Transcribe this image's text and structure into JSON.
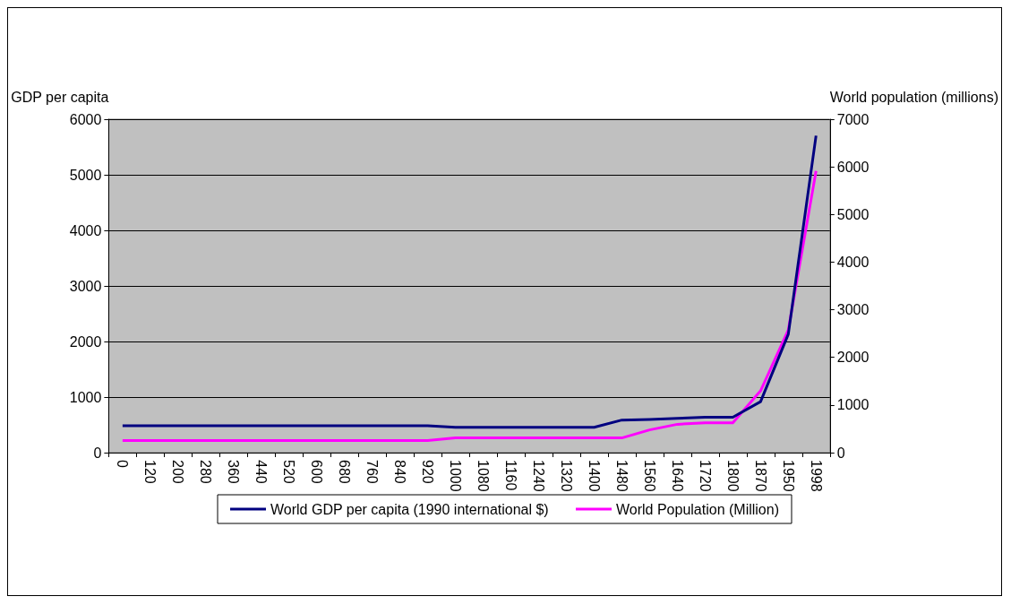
{
  "chart_data": {
    "type": "line",
    "categories": [
      "0",
      "120",
      "200",
      "280",
      "360",
      "440",
      "520",
      "600",
      "680",
      "760",
      "840",
      "920",
      "1000",
      "1080",
      "1160",
      "1240",
      "1320",
      "1400",
      "1480",
      "1560",
      "1640",
      "1720",
      "1800",
      "1870",
      "1950",
      "1998"
    ],
    "series": [
      {
        "name": "World GDP per capita (1990 international $)",
        "color": "#000080",
        "values": [
          485,
          485,
          485,
          485,
          485,
          485,
          485,
          485,
          485,
          485,
          485,
          485,
          455,
          455,
          455,
          455,
          455,
          455,
          586,
          597,
          618,
          638,
          638,
          918,
          2131,
          5703
        ]
      },
      {
        "name": "World Population (Million)",
        "color": "#ff00ff",
        "axis": "y2",
        "values": [
          255,
          255,
          255,
          255,
          255,
          255,
          255,
          255,
          255,
          255,
          255,
          255,
          309,
          309,
          309,
          309,
          309,
          309,
          309,
          477,
          595,
          625,
          625,
          1298,
          2577,
          5912
        ]
      }
    ],
    "ylabel": "GDP per capita",
    "y2label": "World population (millions)",
    "ylim": [
      0,
      6000
    ],
    "yticks": [
      0,
      1000,
      2000,
      3000,
      4000,
      5000,
      6000
    ],
    "y2lim": [
      0,
      7000
    ],
    "y2ticks": [
      0,
      1000,
      2000,
      3000,
      4000,
      5000,
      6000,
      7000
    ],
    "grid": "y",
    "legend": "bottom",
    "marker": "none",
    "line_style": "solid"
  }
}
